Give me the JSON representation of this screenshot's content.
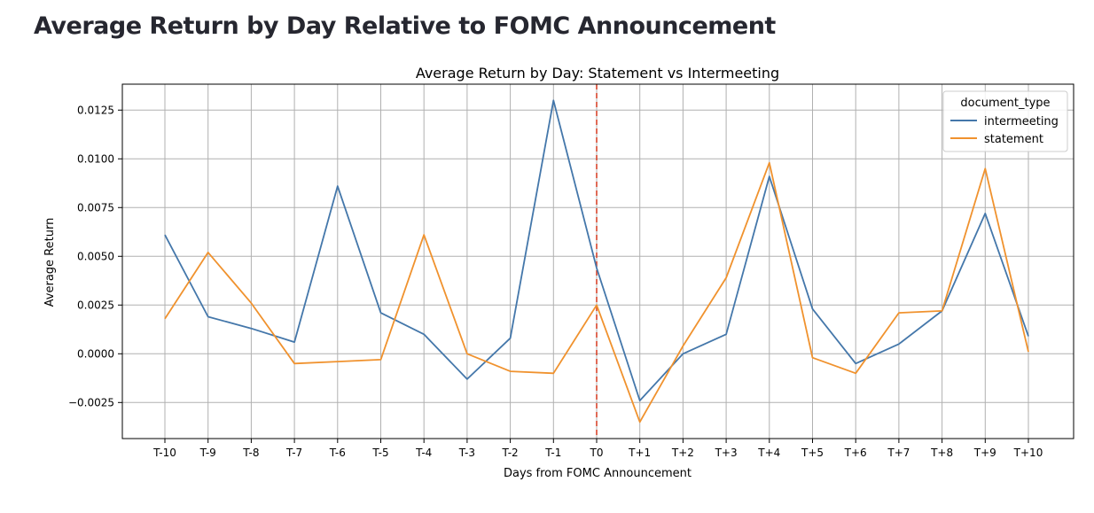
{
  "page": {
    "title": "Average Return by Day Relative to FOMC Announcement"
  },
  "chart_data": {
    "type": "line",
    "title": "Average Return by Day: Statement vs Intermeeting",
    "xlabel": "Days from FOMC Announcement",
    "ylabel": "Average Return",
    "categories": [
      "T-10",
      "T-9",
      "T-8",
      "T-7",
      "T-6",
      "T-5",
      "T-4",
      "T-3",
      "T-2",
      "T-1",
      "T0",
      "T+1",
      "T+2",
      "T+3",
      "T+4",
      "T+5",
      "T+6",
      "T+7",
      "T+8",
      "T+9",
      "T+10"
    ],
    "yticks": [
      -0.0025,
      0.0,
      0.0025,
      0.005,
      0.0075,
      0.01,
      0.0125
    ],
    "ytick_labels": [
      "−0.0025",
      "0.0000",
      "0.0025",
      "0.0050",
      "0.0075",
      "0.0100",
      "0.0125"
    ],
    "ylim": [
      -0.00435,
      0.01383
    ],
    "grid": true,
    "legend": {
      "title": "document_type",
      "placement": "top-right"
    },
    "series": [
      {
        "name": "intermeeting",
        "color": "#4477aa",
        "values": [
          0.0061,
          0.0019,
          0.0013,
          0.0006,
          0.0086,
          0.0021,
          0.001,
          -0.0013,
          0.0008,
          0.013,
          0.0044,
          -0.0024,
          0.0,
          0.001,
          0.0091,
          0.0023,
          -0.0005,
          0.0005,
          0.0022,
          0.0072,
          0.0009
        ]
      },
      {
        "name": "statement",
        "color": "#f0922e",
        "values": [
          0.0018,
          0.0052,
          0.0026,
          -0.0005,
          -0.0004,
          -0.0003,
          0.0061,
          0.0,
          -0.0009,
          -0.001,
          0.0025,
          -0.0035,
          0.0004,
          0.0039,
          0.0098,
          -0.0002,
          -0.001,
          0.0021,
          0.0022,
          0.0095,
          0.0001
        ]
      }
    ],
    "annotations": [
      {
        "type": "vline",
        "x": "T0",
        "color": "#d9452c",
        "style": "dashed"
      }
    ]
  }
}
